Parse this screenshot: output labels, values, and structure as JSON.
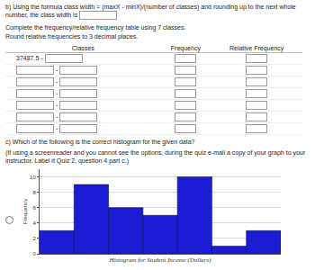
{
  "part_b": {
    "text": "b) Using the formula class width = (maxX - minX)/(number of classes) and rounding up to the next whole number, the class width is"
  },
  "instructions": [
    "Complete the frequency/relative frequency table using 7 classes.",
    "Round relative frequencies to 3 decimal places."
  ],
  "table": {
    "header": [
      "Classes",
      "Frequency",
      "Relative Frequency"
    ],
    "separator": "-",
    "rows": [
      {
        "class_lower": "37487.5"
      },
      {
        "class_lower": null
      },
      {
        "class_lower": null
      },
      {
        "class_lower": null
      },
      {
        "class_lower": null
      },
      {
        "class_lower": null
      },
      {
        "class_lower": null
      }
    ]
  },
  "part_c": {
    "question": "c) Which of the following is the correct histogram for the given data?",
    "note": "(If using a screenreader and you cannot see the options, during the quiz e-mail a copy of your graph to your instructor. Label it Quiz 2, question 4 part c.)"
  },
  "chart_data": {
    "type": "histogram",
    "x_label": "Histogram for Student Income (Dollars)",
    "y_label": "Frequency",
    "bins": [
      37487.5,
      43737.5,
      49987.5,
      56237.5,
      62487.5,
      68737.5,
      74987.5,
      81237.5
    ],
    "counts": [
      3,
      9,
      6,
      5,
      10,
      1,
      3
    ],
    "color": "#1c1cd4",
    "xlim": [
      37487.5,
      81237.5
    ],
    "ylim": [
      0,
      11
    ],
    "yticks": [
      0,
      2,
      4,
      6,
      8,
      10
    ],
    "grid": true,
    "tick_labels": "y"
  }
}
